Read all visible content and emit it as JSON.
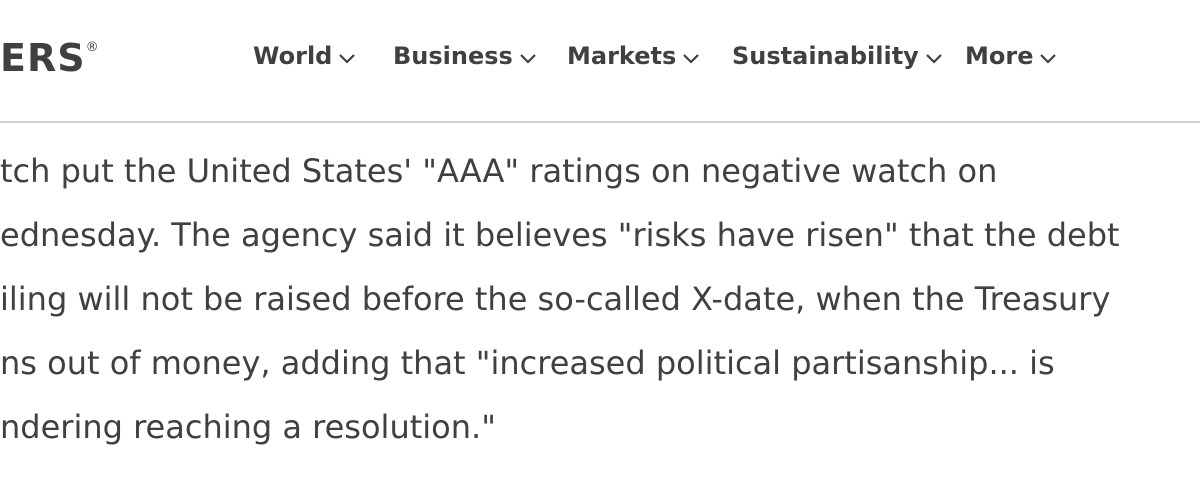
{
  "header": {
    "logo": "ERS",
    "logo_mark": "®",
    "nav": [
      "World",
      "Business",
      "Markets",
      "Sustainability",
      "More"
    ]
  },
  "article": {
    "lines": [
      "tch put the United States' \"AAA\" ratings on negative watch on",
      "ednesday. The agency said it believes \"risks have risen\" that the debt",
      "iling will not be raised before the so-called X-date, when the Treasury",
      "ns out of money, adding that \"increased political partisanship... is",
      "ndering reaching a resolution.\""
    ]
  }
}
